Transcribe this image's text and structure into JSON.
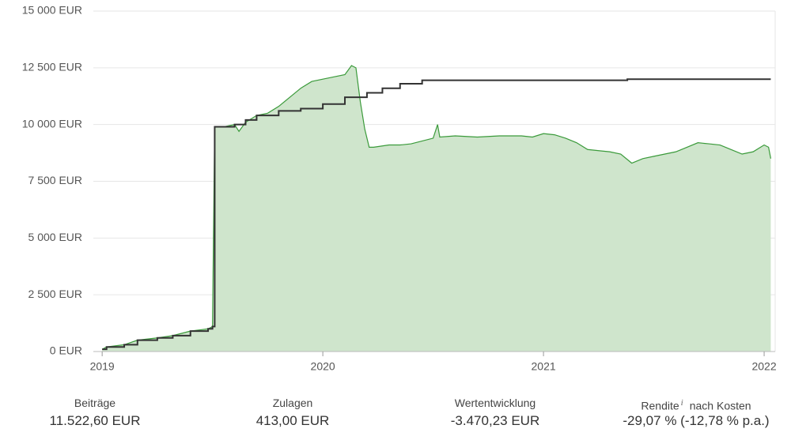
{
  "chart_data": {
    "type": "line",
    "xlim": [
      2018.96,
      2022.05
    ],
    "xticks": [
      2019,
      2020,
      2021,
      2022
    ],
    "ylim": [
      0,
      15000
    ],
    "yticks": [
      {
        "value": 0,
        "label": "0 EUR"
      },
      {
        "value": 2500,
        "label": "2 500 EUR"
      },
      {
        "value": 5000,
        "label": "5 000 EUR"
      },
      {
        "value": 7500,
        "label": "7 500 EUR"
      },
      {
        "value": 10000,
        "label": "10 000 EUR"
      },
      {
        "value": 12500,
        "label": "12 500 EUR"
      },
      {
        "value": 15000,
        "label": "15 000 EUR"
      }
    ],
    "grid": true,
    "series": [
      {
        "color": "#3a9a3a",
        "fill": "#cfe5cc",
        "area": true,
        "x": [
          2019.0,
          2019.02,
          2019.1,
          2019.16,
          2019.25,
          2019.32,
          2019.4,
          2019.48,
          2019.5,
          2019.51,
          2019.55,
          2019.6,
          2019.62,
          2019.65,
          2019.7,
          2019.75,
          2019.8,
          2019.85,
          2019.9,
          2019.95,
          2020.0,
          2020.05,
          2020.1,
          2020.13,
          2020.15,
          2020.17,
          2020.19,
          2020.21,
          2020.23,
          2020.3,
          2020.35,
          2020.4,
          2020.5,
          2020.52,
          2020.53,
          2020.6,
          2020.7,
          2020.8,
          2020.9,
          2020.95,
          2021.0,
          2021.05,
          2021.1,
          2021.15,
          2021.2,
          2021.3,
          2021.35,
          2021.4,
          2021.45,
          2021.5,
          2021.55,
          2021.6,
          2021.65,
          2021.7,
          2021.75,
          2021.8,
          2021.85,
          2021.9,
          2021.95,
          2022.0,
          2022.02,
          2022.03
        ],
        "values": [
          100,
          200,
          300,
          500,
          600,
          700,
          900,
          1000,
          1100,
          9900,
          9900,
          10000,
          9700,
          10100,
          10400,
          10500,
          10800,
          11200,
          11600,
          11900,
          12000,
          12100,
          12200,
          12600,
          12500,
          11000,
          9800,
          9000,
          9000,
          9100,
          9100,
          9150,
          9400,
          10000,
          9450,
          9500,
          9450,
          9500,
          9500,
          9450,
          9600,
          9550,
          9400,
          9200,
          8900,
          8800,
          8700,
          8300,
          8500,
          8600,
          8700,
          8800,
          9000,
          9200,
          9150,
          9100,
          8900,
          8700,
          8800,
          9100,
          9000,
          8500
        ]
      },
      {
        "color": "#333333",
        "step": true,
        "x": [
          2019.0,
          2019.02,
          2019.1,
          2019.16,
          2019.25,
          2019.32,
          2019.4,
          2019.48,
          2019.5,
          2019.51,
          2019.6,
          2019.65,
          2019.7,
          2019.8,
          2019.9,
          2020.0,
          2020.1,
          2020.2,
          2020.27,
          2020.35,
          2020.45,
          2021.38,
          2022.03
        ],
        "values": [
          100,
          200,
          300,
          500,
          600,
          700,
          900,
          1000,
          1100,
          9900,
          10000,
          10200,
          10400,
          10600,
          10700,
          10900,
          11200,
          11400,
          11600,
          11800,
          11950,
          12000,
          12000
        ]
      }
    ]
  },
  "summary": [
    {
      "label": "Beiträge",
      "value": "11.522,60 EUR"
    },
    {
      "label": "Zulagen",
      "value": "413,00 EUR"
    },
    {
      "label": "Wertentwicklung",
      "value": "-3.470,23 EUR"
    },
    {
      "label": "Rendite",
      "info": "i",
      "note": "nach Kosten",
      "value": "-29,07 % (-12,78 % p.a.)"
    }
  ]
}
